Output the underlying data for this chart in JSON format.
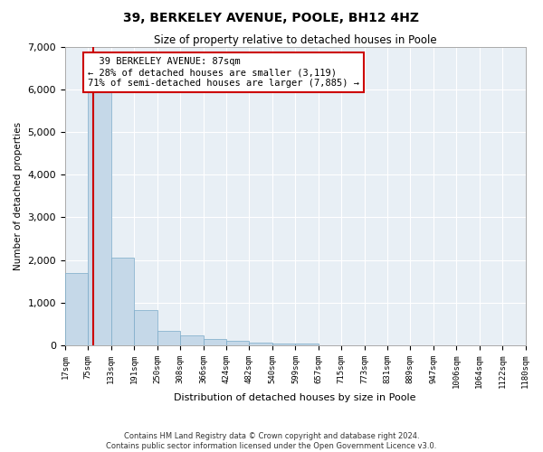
{
  "title": "39, BERKELEY AVENUE, POOLE, BH12 4HZ",
  "subtitle": "Size of property relative to detached houses in Poole",
  "xlabel": "Distribution of detached houses by size in Poole",
  "ylabel": "Number of detached properties",
  "property_size": 87,
  "property_label": "39 BERKELEY AVENUE: 87sqm",
  "pct_smaller": 28,
  "count_smaller": 3119,
  "pct_larger": 71,
  "count_larger": 7885,
  "bar_color": "#c5d8e8",
  "bar_edge_color": "#7aaac8",
  "property_line_color": "#cc0000",
  "annotation_box_color": "#cc0000",
  "background_color": "#e8eff5",
  "grid_color": "#ffffff",
  "footer_text": "Contains HM Land Registry data © Crown copyright and database right 2024.\nContains public sector information licensed under the Open Government Licence v3.0.",
  "bin_edges": [
    17,
    75,
    133,
    191,
    250,
    308,
    366,
    424,
    482,
    540,
    599,
    657,
    715,
    773,
    831,
    889,
    947,
    1006,
    1064,
    1122,
    1180
  ],
  "bin_counts": [
    1700,
    6100,
    2050,
    820,
    340,
    230,
    140,
    100,
    65,
    45,
    55,
    0,
    0,
    0,
    0,
    0,
    0,
    0,
    0,
    0
  ],
  "ylim": [
    0,
    7000
  ],
  "yticks": [
    0,
    1000,
    2000,
    3000,
    4000,
    5000,
    6000,
    7000
  ]
}
